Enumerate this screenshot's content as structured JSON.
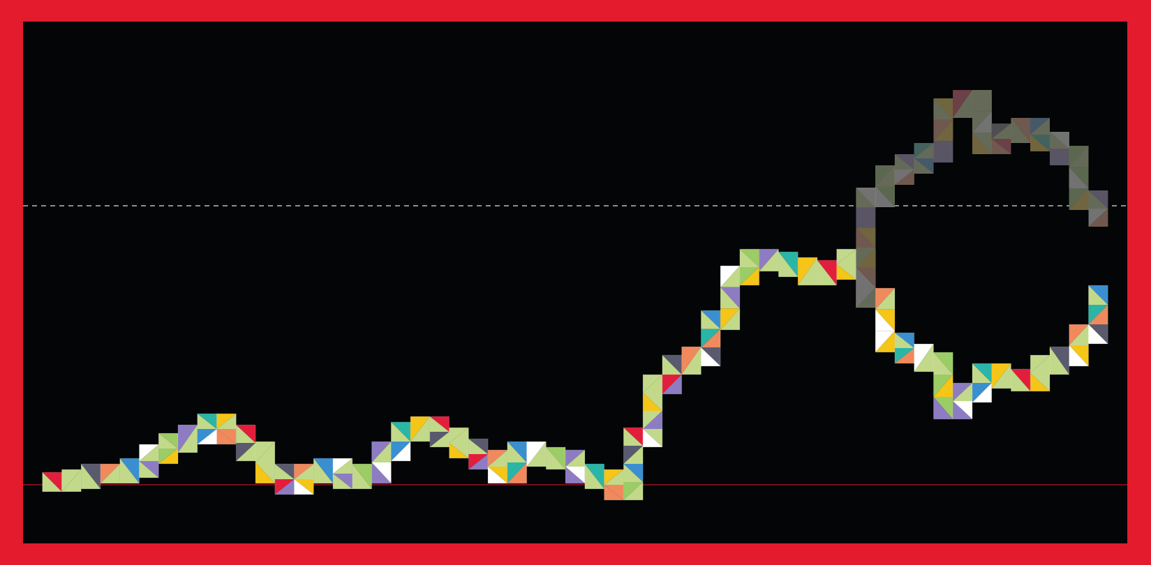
{
  "chart_data": {
    "type": "mosaic-step",
    "x": [
      1,
      2,
      3,
      4,
      5,
      6,
      7,
      8,
      9,
      10,
      11,
      12,
      13,
      14,
      15,
      16,
      17,
      18,
      19,
      20,
      21,
      22,
      23,
      24,
      25,
      26,
      27,
      28,
      29,
      30,
      31,
      32,
      33,
      34,
      35,
      36,
      37,
      38,
      39,
      40,
      41,
      42,
      43,
      44,
      45,
      46,
      47,
      48,
      49,
      50,
      51,
      52,
      53,
      54,
      55
    ],
    "series": [
      {
        "color": "#ffffff",
        "values": [
          1,
          2,
          4,
          4,
          6,
          11,
          15,
          18,
          22,
          18,
          12,
          4,
          0,
          4,
          6,
          2,
          4,
          12,
          19,
          21,
          17,
          13,
          9,
          4,
          12,
          10,
          9,
          4,
          2,
          -2,
          17,
          36,
          43,
          46,
          59,
          75,
          81,
          80,
          78,
          75,
          77,
          81,
          67,
          51,
          47,
          44,
          27,
          33,
          40,
          38,
          37,
          43,
          46,
          54,
          68
        ]
      },
      {
        "color": "#4a4a4a",
        "values": [
          null,
          null,
          null,
          null,
          null,
          null,
          null,
          null,
          null,
          null,
          null,
          null,
          null,
          null,
          null,
          null,
          null,
          null,
          null,
          null,
          null,
          null,
          null,
          null,
          null,
          null,
          null,
          null,
          null,
          null,
          null,
          null,
          null,
          null,
          null,
          null,
          null,
          null,
          null,
          null,
          null,
          null,
          103,
          111,
          115,
          119,
          135,
          138,
          122,
          126,
          128,
          123,
          118,
          102,
          96
        ]
      }
    ],
    "palette": [
      "#e31e3c",
      "#f5c518",
      "#2bb5a6",
      "#8e7cc3",
      "#9ccc65",
      "#ffffff",
      "#3a8fd0",
      "#f08a5d",
      "#5a5a6e",
      "#c2d98a"
    ],
    "reference_lines": [
      {
        "value": 0,
        "color": "#c0102a",
        "style": "solid"
      },
      {
        "value": 100,
        "color": "#bbbbbb",
        "style": "dashed"
      }
    ],
    "xlim": [
      -0.5,
      56.5
    ],
    "ylim": [
      -21,
      166
    ],
    "background": "#030507",
    "frame_color": "#e31b2c"
  }
}
